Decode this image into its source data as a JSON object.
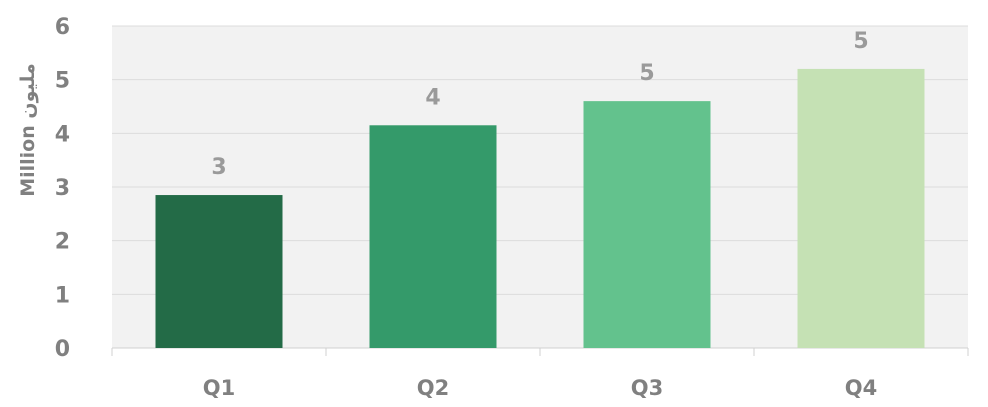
{
  "chart_data": {
    "type": "bar",
    "categories": [
      "Q1",
      "Q2",
      "Q3",
      "Q4"
    ],
    "values": [
      2.85,
      4.15,
      4.6,
      5.2
    ],
    "data_labels": [
      "3",
      "4",
      "5",
      "5"
    ],
    "ylabel": "Million مليون",
    "ylim": [
      0,
      6
    ],
    "yticks": [
      "0",
      "1",
      "2",
      "3",
      "4",
      "5",
      "6"
    ],
    "grid": true,
    "colors": [
      "#236b47",
      "#349a6a",
      "#63c28d",
      "#c5e1b4"
    ],
    "plot_background": "#f2f2f2"
  }
}
